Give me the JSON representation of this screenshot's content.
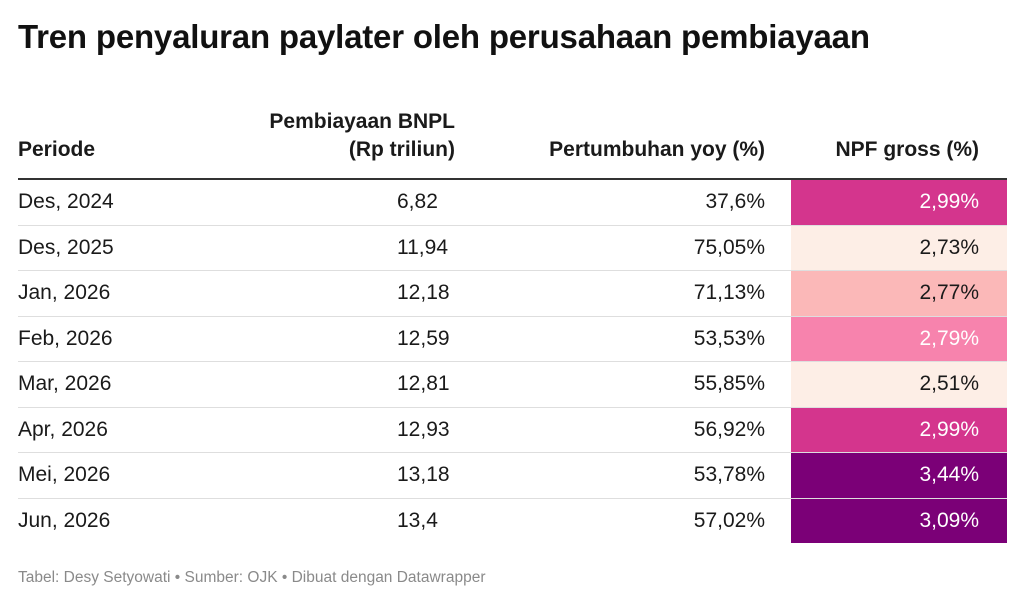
{
  "title": "Tren penyaluran paylater oleh perusahaan pembiayaan",
  "footer": "Tabel: Desy Setyowati • Sumber: OJK • Dibuat dengan Datawrapper",
  "chart_data": {
    "type": "table",
    "columns": [
      {
        "label_lines": [
          "Periode"
        ]
      },
      {
        "label_lines": [
          "Pembiayaan BNPL",
          "(Rp triliun)"
        ]
      },
      {
        "label_lines": [
          "Pertumbuhan yoy (%)"
        ]
      },
      {
        "label_lines": [
          "NPF gross (%)"
        ]
      }
    ],
    "rows": [
      {
        "periode": "Des, 2024",
        "bnpl": "6,82",
        "yoy": "37,6%",
        "npf": "2,99%",
        "npf_value": 2.99,
        "npf_bg": "#d4358d",
        "npf_fg": "#ffffff"
      },
      {
        "periode": "Des, 2025",
        "bnpl": "11,94",
        "yoy": "75,05%",
        "npf": "2,73%",
        "npf_value": 2.73,
        "npf_bg": "#fdeee6",
        "npf_fg": "#1a1a1a"
      },
      {
        "periode": "Jan, 2026",
        "bnpl": "12,18",
        "yoy": "71,13%",
        "npf": "2,77%",
        "npf_value": 2.77,
        "npf_bg": "#fbb8b8",
        "npf_fg": "#1a1a1a"
      },
      {
        "periode": "Feb, 2026",
        "bnpl": "12,59",
        "yoy": "53,53%",
        "npf": "2,79%",
        "npf_value": 2.79,
        "npf_bg": "#f783ad",
        "npf_fg": "#ffffff"
      },
      {
        "periode": "Mar, 2026",
        "bnpl": "12,81",
        "yoy": "55,85%",
        "npf": "2,51%",
        "npf_value": 2.51,
        "npf_bg": "#fdeee6",
        "npf_fg": "#1a1a1a"
      },
      {
        "periode": "Apr, 2026",
        "bnpl": "12,93",
        "yoy": "56,92%",
        "npf": "2,99%",
        "npf_value": 2.99,
        "npf_bg": "#d4358d",
        "npf_fg": "#ffffff"
      },
      {
        "periode": "Mei, 2026",
        "bnpl": "13,18",
        "yoy": "53,78%",
        "npf": "3,44%",
        "npf_value": 3.44,
        "npf_bg": "#7b0077",
        "npf_fg": "#ffffff"
      },
      {
        "periode": "Jun, 2026",
        "bnpl": "13,4",
        "yoy": "57,02%",
        "npf": "3,09%",
        "npf_value": 3.09,
        "npf_bg": "#7b0077",
        "npf_fg": "#ffffff"
      }
    ]
  }
}
